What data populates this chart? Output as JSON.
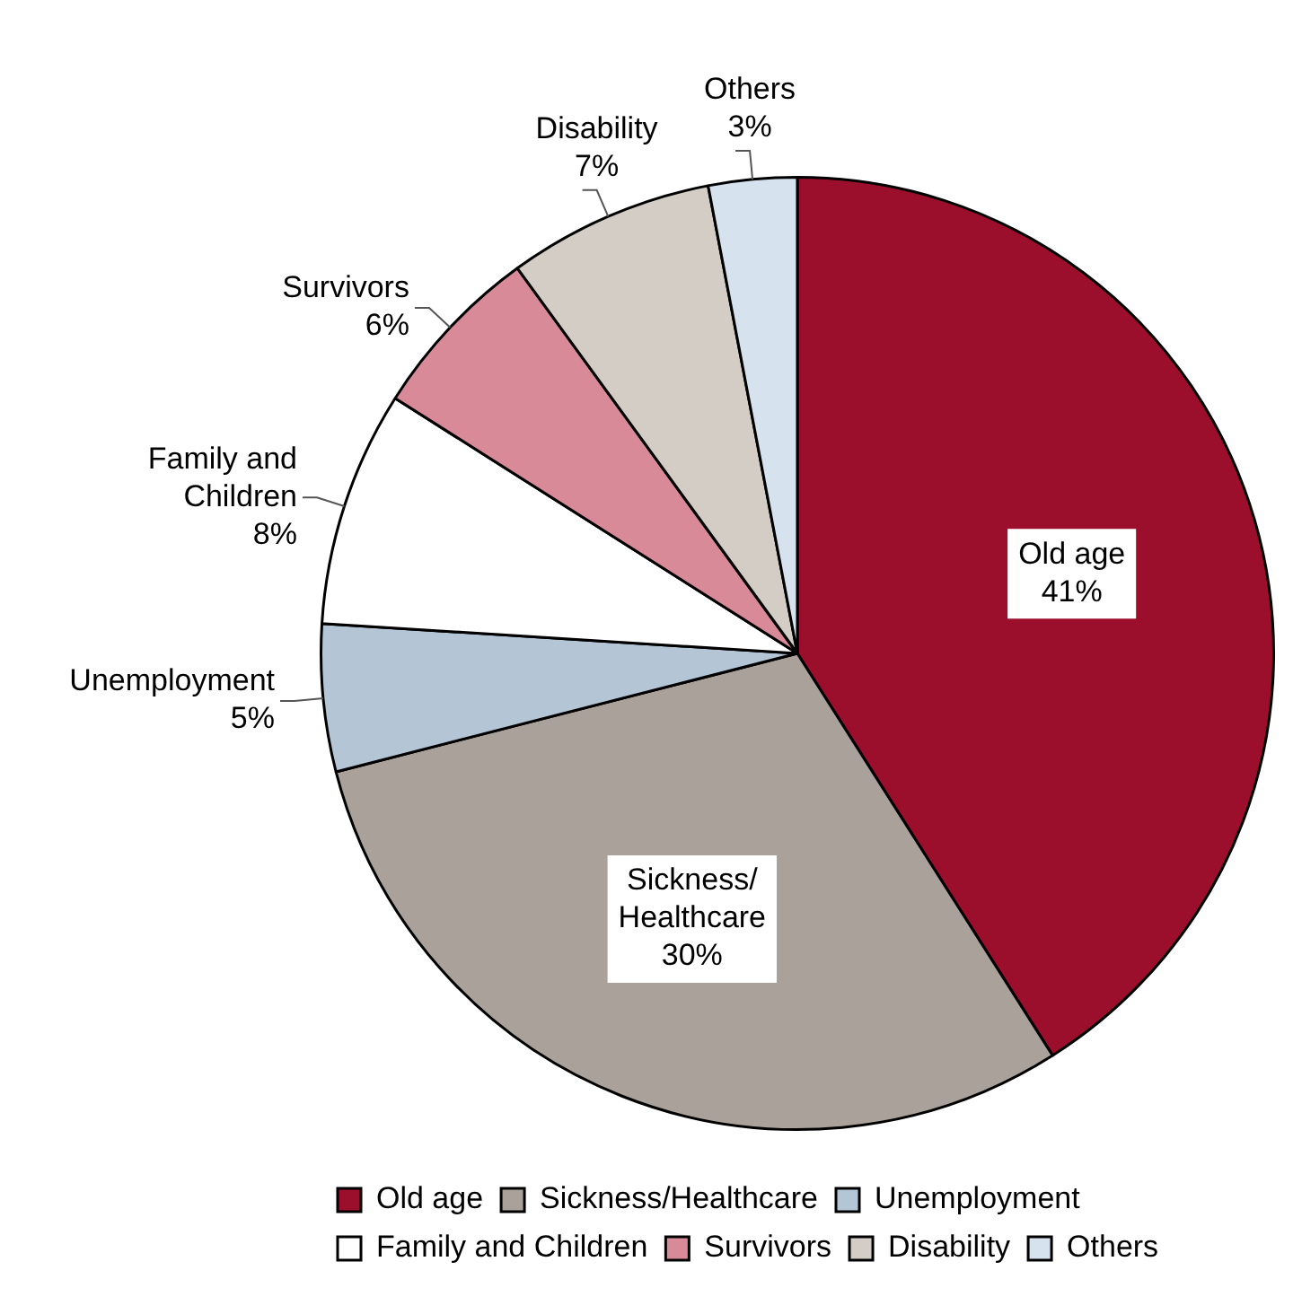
{
  "chart_data": {
    "type": "pie",
    "categories": [
      "Old age",
      "Sickness/Healthcare",
      "Unemployment",
      "Family and Children",
      "Survivors",
      "Disability",
      "Others"
    ],
    "values": [
      41,
      30,
      5,
      8,
      6,
      7,
      3
    ],
    "value_labels": [
      "41%",
      "30%",
      "5%",
      "8%",
      "6%",
      "7%",
      "3%"
    ],
    "colors": [
      "#9b0f2d",
      "#aaa29a",
      "#b4c6d6",
      "#ffffff",
      "#d88a98",
      "#d4cdc6",
      "#d6e2ee"
    ],
    "legend": "bottom"
  }
}
